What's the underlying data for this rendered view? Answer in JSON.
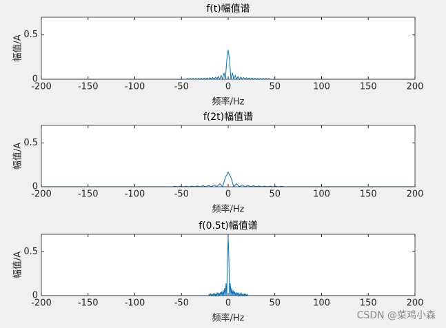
{
  "chart_data": [
    {
      "type": "line",
      "title": "f(t)幅值谱",
      "xlabel": "频率/Hz",
      "ylabel": "幅值/A",
      "x": [
        -200,
        -45,
        -43.5,
        -42,
        -40.5,
        -39,
        -37.5,
        -36,
        -34.5,
        -33,
        -31.5,
        -30,
        -28.5,
        -27,
        -25.5,
        -24,
        -22.5,
        -21,
        -19.5,
        -18,
        -16.5,
        -15,
        -13.5,
        -12,
        -10.5,
        -9,
        -7.5,
        -6,
        -4.5,
        -3,
        -1.5,
        0,
        1.5,
        3,
        4.5,
        6,
        7.5,
        9,
        10.5,
        12,
        13.5,
        15,
        16.5,
        18,
        19.5,
        21,
        22.5,
        24,
        25.5,
        27,
        28.5,
        30,
        31.5,
        33,
        34.5,
        36,
        37.5,
        39,
        40.5,
        42,
        43.5,
        45,
        200
      ],
      "series": [
        {
          "color": "#0072bd",
          "values": [
            0,
            0,
            0.0073,
            0,
            0.0079,
            0,
            0.0085,
            0,
            0.0092,
            0,
            0.0101,
            0,
            0.0112,
            0,
            0.0125,
            0,
            0.0141,
            0,
            0.0163,
            0,
            0.0193,
            0,
            0.0236,
            0,
            0.0303,
            0,
            0.0424,
            0,
            0.0707,
            0,
            0.212,
            0.333,
            0.212,
            0,
            0.0707,
            0,
            0.0424,
            0,
            0.0303,
            0,
            0.0236,
            0,
            0.0193,
            0,
            0.0163,
            0,
            0.0141,
            0,
            0.0125,
            0,
            0.0112,
            0,
            0.0101,
            0,
            0.0092,
            0,
            0.0085,
            0,
            0.0079,
            0,
            0.0073,
            0,
            0
          ]
        }
      ],
      "xlim": [
        -200,
        200
      ],
      "ylim": [
        0,
        0.7
      ],
      "xticks": [
        -200,
        -150,
        -100,
        -50,
        0,
        50,
        100,
        150,
        200
      ],
      "yticks": [
        0,
        0.5
      ]
    },
    {
      "type": "line",
      "title": "f(2t)幅值谱",
      "xlabel": "频率/Hz",
      "ylabel": "幅值/A",
      "x": [
        -200,
        -60,
        -57,
        -54,
        -51,
        -48,
        -45,
        -42,
        -39,
        -36,
        -33,
        -30,
        -27,
        -24,
        -21,
        -18,
        -15,
        -12,
        -9,
        -6,
        -3,
        0,
        3,
        6,
        9,
        12,
        15,
        18,
        21,
        24,
        27,
        30,
        33,
        36,
        39,
        42,
        45,
        48,
        51,
        54,
        57,
        60,
        200
      ],
      "series": [
        {
          "color": "#0072bd",
          "values": [
            0,
            0,
            0.0056,
            0,
            0.0062,
            0,
            0.0071,
            0,
            0.0082,
            0,
            0.0096,
            0,
            0.0118,
            0,
            0.0152,
            0,
            0.0212,
            0,
            0.0354,
            0,
            0.106,
            0.1667,
            0.106,
            0,
            0.0354,
            0,
            0.0212,
            0,
            0.0152,
            0,
            0.0118,
            0,
            0.0096,
            0,
            0.0082,
            0,
            0.0071,
            0,
            0.0062,
            0,
            0.0056,
            0,
            0
          ]
        }
      ],
      "xlim": [
        -200,
        200
      ],
      "ylim": [
        0,
        0.7
      ],
      "xticks": [
        -200,
        -150,
        -100,
        -50,
        0,
        50,
        100,
        150,
        200
      ],
      "yticks": [
        0,
        0.5
      ]
    },
    {
      "type": "line",
      "title": "f(0.5t)幅值谱",
      "xlabel": "频率/Hz",
      "ylabel": "幅值/A",
      "x": [
        -200,
        -21,
        -20.25,
        -19.5,
        -18.75,
        -18,
        -17.25,
        -16.5,
        -15.75,
        -15,
        -14.25,
        -13.5,
        -12.75,
        -12,
        -11.25,
        -10.5,
        -9.75,
        -9,
        -8.25,
        -7.5,
        -6.75,
        -6,
        -5.25,
        -4.5,
        -3.75,
        -3,
        -2.25,
        -1.5,
        -0.75,
        0,
        0.75,
        1.5,
        2.25,
        3,
        3.75,
        4.5,
        5.25,
        6,
        6.75,
        7.5,
        8.25,
        9,
        9.75,
        10.5,
        11.25,
        12,
        12.75,
        13.5,
        14.25,
        15,
        15.75,
        16.5,
        17.25,
        18,
        18.75,
        19.5,
        20.25,
        21,
        200
      ],
      "series": [
        {
          "color": "#0072bd",
          "values": [
            0,
            0,
            0.0157,
            0,
            0.017,
            0,
            0.0185,
            0,
            0.0202,
            0,
            0.0223,
            0,
            0.025,
            0,
            0.0283,
            0,
            0.0326,
            0,
            0.0386,
            0,
            0.0472,
            0,
            0.0606,
            0,
            0.0849,
            0,
            0.1415,
            0,
            0.424,
            0.667,
            0.424,
            0,
            0.1415,
            0,
            0.0849,
            0,
            0.0606,
            0,
            0.0472,
            0,
            0.0386,
            0,
            0.0326,
            0,
            0.0283,
            0,
            0.025,
            0,
            0.0223,
            0,
            0.0202,
            0,
            0.0185,
            0,
            0.017,
            0,
            0.0157,
            0,
            0
          ]
        }
      ],
      "xlim": [
        -200,
        200
      ],
      "ylim": [
        0,
        0.7
      ],
      "xticks": [
        -200,
        -150,
        -100,
        -50,
        0,
        50,
        100,
        150,
        200
      ],
      "yticks": [
        0,
        0.5
      ]
    }
  ],
  "watermark": "CSDN @菜鸡小森"
}
